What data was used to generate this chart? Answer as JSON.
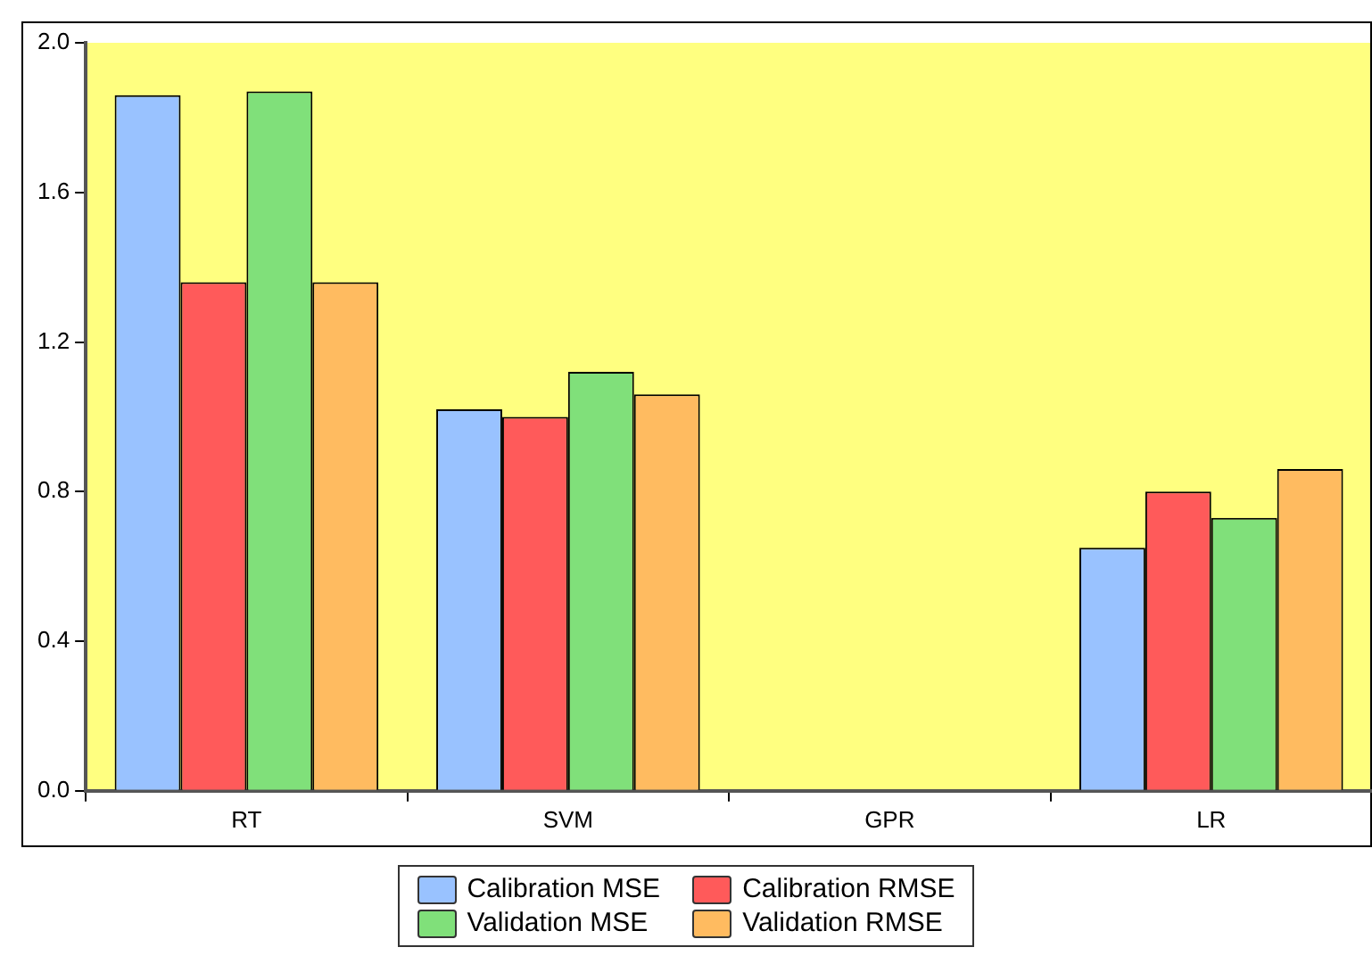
{
  "chart_data": {
    "type": "bar",
    "categories": [
      "RT",
      "SVM",
      "GPR",
      "LR"
    ],
    "series": [
      {
        "name": "Calibration MSE",
        "color": "#99c2ff",
        "values": [
          1.86,
          1.02,
          0,
          0.65
        ]
      },
      {
        "name": "Calibration RMSE",
        "color": "#ff5a5a",
        "values": [
          1.36,
          1.0,
          0,
          0.8
        ]
      },
      {
        "name": "Validation MSE",
        "color": "#80e07a",
        "values": [
          1.87,
          1.12,
          0,
          0.73
        ]
      },
      {
        "name": "Validation RMSE",
        "color": "#ffbb60",
        "values": [
          1.36,
          1.06,
          0,
          0.86
        ]
      }
    ],
    "ylim": [
      0,
      2
    ],
    "yticks": [
      {
        "value": 0,
        "label": "0.0"
      },
      {
        "value": 0.4,
        "label": "0.4"
      },
      {
        "value": 0.8,
        "label": "0.8"
      },
      {
        "value": 1.2,
        "label": "1.2"
      },
      {
        "value": 1.6,
        "label": "1.6"
      },
      {
        "value": 2,
        "label": "2.0"
      }
    ],
    "grid": false,
    "legend": "bottom"
  }
}
